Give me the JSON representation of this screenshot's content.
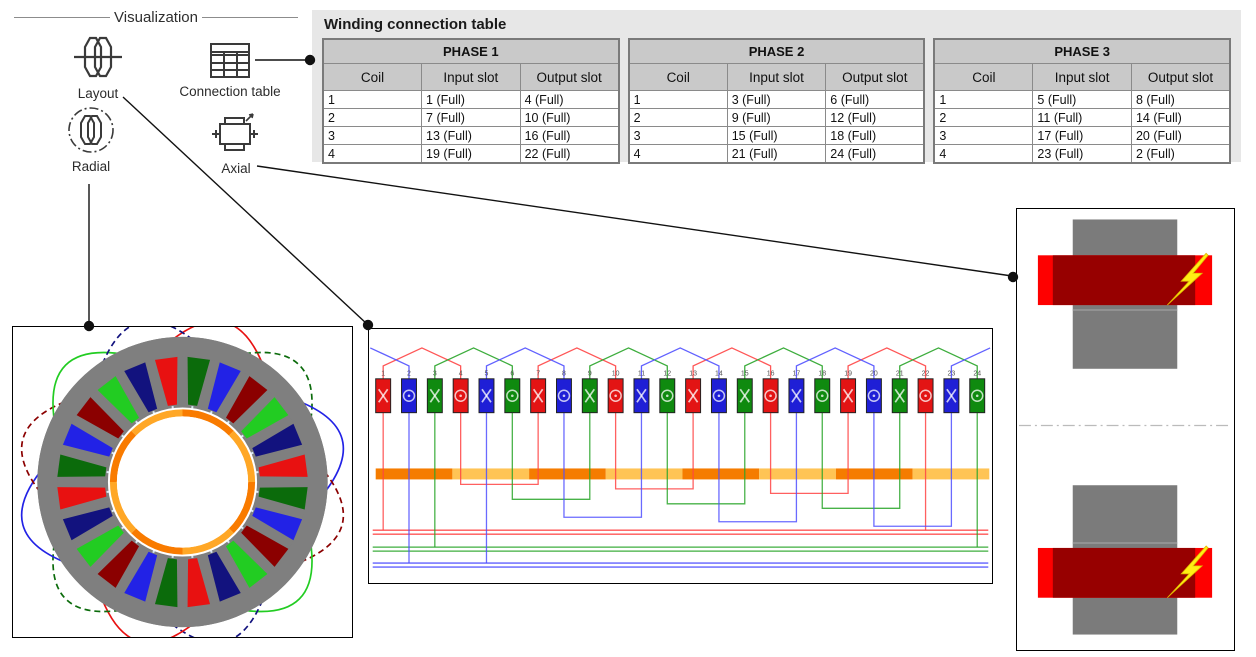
{
  "visualization_group": {
    "label": "Visualization",
    "options": [
      {
        "id": "layout",
        "label": "Layout",
        "icon": "winding-layout-icon"
      },
      {
        "id": "connection_table",
        "label": "Connection table",
        "icon": "table-icon"
      },
      {
        "id": "radial",
        "label": "Radial",
        "icon": "radial-view-icon"
      },
      {
        "id": "axial",
        "label": "Axial",
        "icon": "axial-view-icon"
      }
    ]
  },
  "winding_table": {
    "title": "Winding connection table",
    "columns": [
      "Coil",
      "Input slot",
      "Output slot"
    ],
    "phases": [
      {
        "name": "PHASE 1",
        "rows": [
          [
            "1",
            "1 (Full)",
            "4 (Full)"
          ],
          [
            "2",
            "7 (Full)",
            "10 (Full)"
          ],
          [
            "3",
            "13 (Full)",
            "16 (Full)"
          ],
          [
            "4",
            "19 (Full)",
            "22 (Full)"
          ]
        ]
      },
      {
        "name": "PHASE 2",
        "rows": [
          [
            "1",
            "3 (Full)",
            "6 (Full)"
          ],
          [
            "2",
            "9 (Full)",
            "12 (Full)"
          ],
          [
            "3",
            "15 (Full)",
            "18 (Full)"
          ],
          [
            "4",
            "21 (Full)",
            "24 (Full)"
          ]
        ]
      },
      {
        "name": "PHASE 3",
        "rows": [
          [
            "1",
            "5 (Full)",
            "8 (Full)"
          ],
          [
            "2",
            "11 (Full)",
            "14 (Full)"
          ],
          [
            "3",
            "17 (Full)",
            "20 (Full)"
          ],
          [
            "4",
            "23 (Full)",
            "2 (Full)"
          ]
        ]
      }
    ]
  },
  "layout_diagram": {
    "slot_numbers": [
      1,
      2,
      3,
      4,
      5,
      6,
      7,
      8,
      9,
      10,
      11,
      12,
      13,
      14,
      15,
      16,
      17,
      18,
      19,
      20,
      21,
      22,
      23,
      24
    ],
    "slot_phases": [
      1,
      3,
      2,
      1,
      3,
      2,
      1,
      3,
      2,
      1,
      3,
      2,
      1,
      3,
      2,
      1,
      3,
      2,
      1,
      3,
      2,
      1,
      3,
      2
    ],
    "slot_symbols": [
      "cross",
      "dot",
      "cross",
      "dot",
      "cross",
      "dot",
      "cross",
      "dot",
      "cross",
      "dot",
      "cross",
      "dot",
      "cross",
      "dot",
      "cross",
      "dot",
      "cross",
      "dot",
      "cross",
      "dot",
      "cross",
      "dot",
      "cross",
      "dot"
    ],
    "phase_colors": {
      "1": "#e31414",
      "2": "#0f8a0f",
      "3": "#1f1fd6"
    },
    "wire_colors": {
      "1": "#ff4444",
      "2": "#28a428",
      "3": "#5050ff"
    },
    "coils": {
      "1": [
        [
          1,
          4
        ],
        [
          7,
          10
        ],
        [
          13,
          16
        ],
        [
          19,
          22
        ]
      ],
      "2": [
        [
          3,
          6
        ],
        [
          9,
          12
        ],
        [
          15,
          18
        ],
        [
          21,
          24
        ]
      ],
      "3": [
        [
          5,
          8
        ],
        [
          11,
          14
        ],
        [
          17,
          20
        ],
        [
          23,
          2
        ]
      ]
    },
    "magnet_colors": [
      "#f57c00",
      "#ffc455"
    ],
    "magnet_segments": 8
  },
  "radial_diagram": {
    "stator_color": "#7f7f7f",
    "slot_colors": [
      "#e81111",
      "#0b6b0b",
      "#2222e6",
      "#8b0000",
      "#22cc22",
      "#12127e",
      "#e81111",
      "#0b6b0b",
      "#2222e6",
      "#8b0000",
      "#22cc22",
      "#12127e",
      "#e81111",
      "#0b6b0b",
      "#2222e6",
      "#8b0000",
      "#22cc22",
      "#12127e",
      "#e81111",
      "#0b6b0b",
      "#2222e6",
      "#8b0000",
      "#22cc22",
      "#12127e"
    ],
    "ring_colors": [
      "#f97b00",
      "#ffa726"
    ],
    "petal_colors": [
      "#e81111",
      "#0b6b0b",
      "#2222e6",
      "#8b0000",
      "#22cc22",
      "#12127e"
    ]
  },
  "axial_diagram": {
    "lamination_color": "#7b7b7b",
    "coil_color": "#970000",
    "end_winding_color": "#fe0000",
    "fault_color": "#ffef14",
    "fault_icon": "lightning-bolt-icon"
  }
}
